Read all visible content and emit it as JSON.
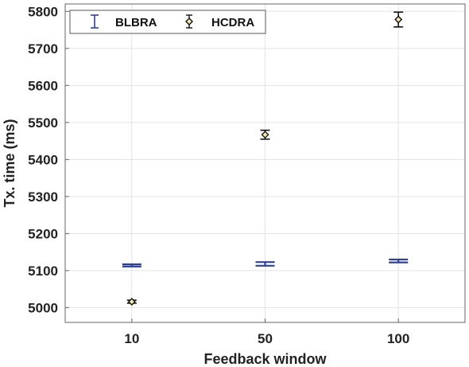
{
  "chart_data": {
    "type": "scatter",
    "title": "",
    "xlabel": "Feedback window",
    "ylabel": "Tx. time (ms)",
    "categories": [
      "10",
      "50",
      "100"
    ],
    "ylim": [
      4960,
      5820
    ],
    "yticks": [
      5000,
      5100,
      5200,
      5300,
      5400,
      5500,
      5600,
      5700,
      5800
    ],
    "grid": true,
    "legend_position": "top-left",
    "series": [
      {
        "name": "BLBRA",
        "color": "#2b3fa0",
        "marker": "none",
        "values": [
          5114,
          5118,
          5126
        ],
        "errors": [
          3,
          5,
          4
        ]
      },
      {
        "name": "HCDRA",
        "color": "#111111",
        "marker": "diamond",
        "values": [
          5016,
          5467,
          5778
        ],
        "errors": [
          4,
          12,
          20
        ]
      }
    ]
  }
}
